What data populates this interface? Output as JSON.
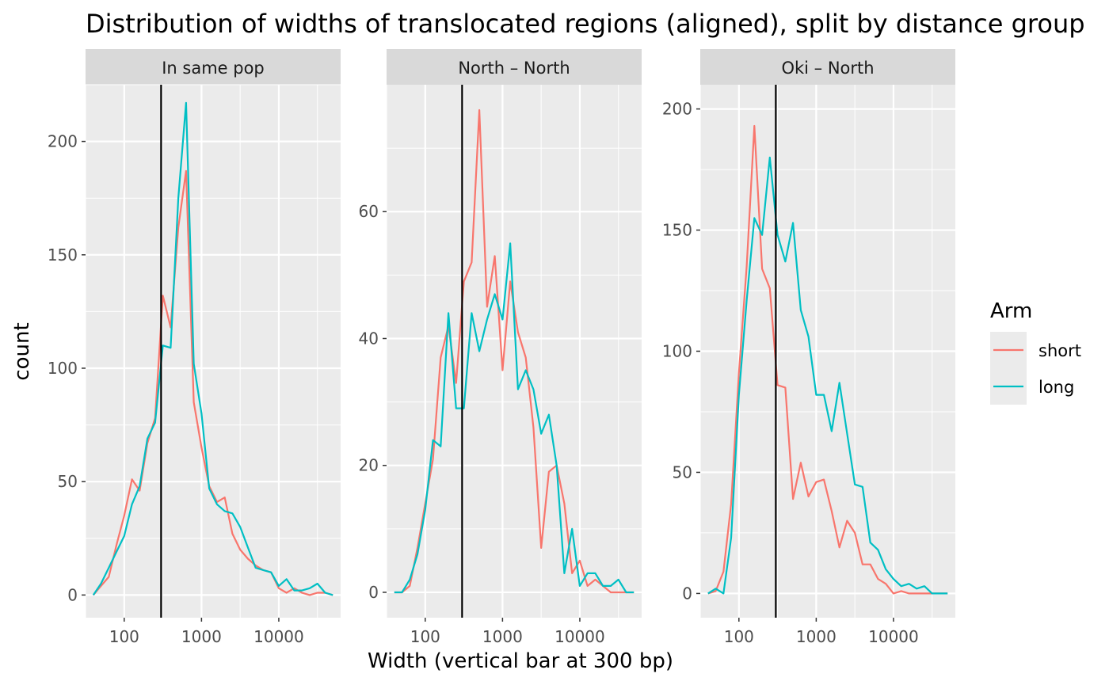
{
  "chart_data": {
    "type": "line",
    "title": "Distribution of widths of translocated regions (aligned), split by distance group",
    "xlabel": "Width (vertical bar at 300 bp)",
    "ylabel": "count",
    "x_scale": "log10",
    "x_ticks": [
      100,
      1000,
      10000
    ],
    "x_tick_labels": [
      "100",
      "1000",
      "10000"
    ],
    "xlim": [
      31.6,
      63096
    ],
    "vline_x": 300,
    "legend": {
      "title": "Arm",
      "placement": "right",
      "entries": [
        {
          "label": "short",
          "color": "#F8766D"
        },
        {
          "label": "long",
          "color": "#00BFC4"
        }
      ]
    },
    "x": [
      39.8,
      50.1,
      63.1,
      79.4,
      100,
      125.9,
      158.5,
      199.5,
      251.2,
      316.2,
      398.1,
      501.2,
      631,
      794.3,
      1000,
      1258.9,
      1584.9,
      1995.3,
      2511.9,
      3162.3,
      3981.1,
      5011.9,
      6309.6,
      7943.3,
      10000,
      12589.3,
      15848.9,
      19952.6,
      25118.9,
      31622.8,
      39810.7,
      50118.7
    ],
    "panels": [
      {
        "strip": "In same pop",
        "ylim": [
          -10,
          225
        ],
        "y_ticks": [
          0,
          50,
          100,
          150,
          200
        ],
        "y_tick_labels": [
          "0",
          "50",
          "100",
          "150",
          "200"
        ],
        "series": [
          {
            "name": "short",
            "color": "#F8766D",
            "values": [
              0,
              4,
              8,
              22,
              35,
              51,
              46,
              67,
              78,
              132,
              118,
              162,
              187,
              85,
              65,
              48,
              41,
              43,
              27,
              20,
              16,
              13,
              11,
              10,
              3,
              1,
              3,
              1,
              0,
              1,
              1,
              0
            ]
          },
          {
            "name": "long",
            "color": "#00BFC4",
            "values": [
              0,
              5,
              12,
              19,
              26,
              40,
              48,
              69,
              76,
              110,
              109,
              175,
              217,
              102,
              80,
              47,
              40,
              37,
              36,
              30,
              21,
              12,
              11,
              10,
              4,
              7,
              2,
              2,
              3,
              5,
              1,
              0
            ]
          }
        ]
      },
      {
        "strip": "North – North",
        "ylim": [
          -4,
          80
        ],
        "y_ticks": [
          0,
          20,
          40,
          60
        ],
        "y_tick_labels": [
          "0",
          "20",
          "40",
          "60"
        ],
        "series": [
          {
            "name": "short",
            "color": "#F8766D",
            "values": [
              0,
              0,
              1,
              7,
              14,
              21,
              37,
              42,
              33,
              49,
              52,
              76,
              45,
              53,
              35,
              49,
              41,
              37,
              26,
              7,
              19,
              20,
              14,
              3,
              5,
              1,
              2,
              1,
              0,
              0,
              0,
              0
            ]
          },
          {
            "name": "long",
            "color": "#00BFC4",
            "values": [
              0,
              0,
              2,
              6,
              13,
              24,
              23,
              44,
              29,
              29,
              44,
              38,
              43,
              47,
              43,
              55,
              32,
              35,
              32,
              25,
              28,
              20,
              3,
              10,
              1,
              3,
              3,
              1,
              1,
              2,
              0,
              0
            ]
          }
        ]
      },
      {
        "strip": "Oki – North",
        "ylim": [
          -10,
          210
        ],
        "y_ticks": [
          0,
          50,
          100,
          150,
          200
        ],
        "y_tick_labels": [
          "0",
          "50",
          "100",
          "150",
          "200"
        ],
        "series": [
          {
            "name": "short",
            "color": "#F8766D",
            "values": [
              0,
              1,
              9,
              37,
              91,
              135,
              193,
              134,
              126,
              86,
              85,
              39,
              54,
              40,
              46,
              47,
              34,
              19,
              30,
              25,
              12,
              12,
              6,
              4,
              0,
              1,
              0,
              0,
              0,
              0,
              0,
              0
            ]
          },
          {
            "name": "long",
            "color": "#00BFC4",
            "values": [
              0,
              2,
              0,
              23,
              82,
              121,
              155,
              148,
              180,
              148,
              137,
              153,
              117,
              106,
              82,
              82,
              67,
              87,
              66,
              45,
              44,
              21,
              18,
              10,
              6,
              3,
              4,
              2,
              3,
              0,
              0,
              0
            ]
          }
        ]
      }
    ]
  }
}
